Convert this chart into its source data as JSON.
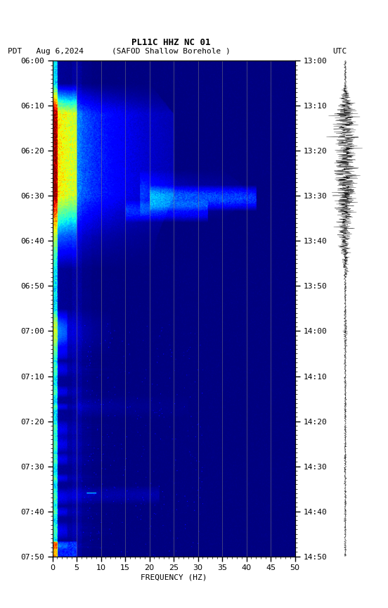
{
  "title_line1": "PL11C HHZ NC 01",
  "title_line2_left": "PDT   Aug 6,2024",
  "title_line2_center": "(SAFOD Shallow Borehole )",
  "title_line2_right": "UTC",
  "xlabel": "FREQUENCY (HZ)",
  "freq_min": 0,
  "freq_max": 50,
  "left_yticks": [
    "06:00",
    "06:10",
    "06:20",
    "06:30",
    "06:40",
    "06:50",
    "07:00",
    "07:10",
    "07:20",
    "07:30",
    "07:40",
    "07:50"
  ],
  "right_yticks": [
    "13:00",
    "13:10",
    "13:20",
    "13:30",
    "13:40",
    "13:50",
    "14:00",
    "14:10",
    "14:20",
    "14:30",
    "14:40",
    "14:50"
  ],
  "xtick_major": 5,
  "xtick_minor": 1,
  "background_color": "#ffffff",
  "colormap": "jet",
  "n_freq": 500,
  "n_time": 660,
  "total_minutes": 110
}
